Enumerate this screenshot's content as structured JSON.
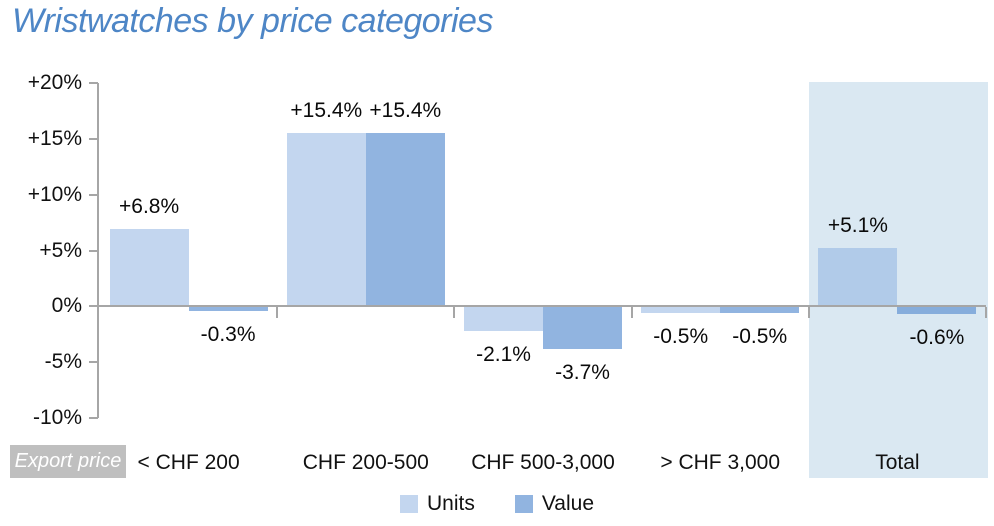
{
  "title": "Wristwatches by price categories",
  "export_price_label": "Export price",
  "colors": {
    "title": "#4E86C6",
    "units_apparent": "#C5D9F1",
    "value_apparent": "#91B4E0",
    "units_fill": "rgba(140,176,224,0.52)",
    "value_fill": "rgba(98,148,211,0.70)",
    "total_highlight_bg": "#DAE8F2",
    "axis_line": "#A6A6A6",
    "export_chip_bg": "#BFBFBF",
    "export_chip_text": "#FFFFFF"
  },
  "chart_data": {
    "type": "bar",
    "title": "Wristwatches by price categories",
    "categories": [
      "< CHF 200",
      "CHF 200-500",
      "CHF 500-3,000",
      "> CHF 3,000",
      "Total"
    ],
    "series": [
      {
        "name": "Units",
        "values": [
          6.8,
          15.4,
          -2.1,
          -0.5,
          5.1
        ],
        "labels": [
          "+6.8%",
          "+15.4%",
          "-2.1%",
          "-0.5%",
          "+5.1%"
        ]
      },
      {
        "name": "Value",
        "values": [
          -0.3,
          15.4,
          -3.7,
          -0.5,
          -0.6
        ],
        "labels": [
          "-0.3%",
          "+15.4%",
          "-3.7%",
          "-0.5%",
          "-0.6%"
        ]
      }
    ],
    "ylim": [
      -10,
      20
    ],
    "ytick_step": 5,
    "yticks": [
      "+20%",
      "+15%",
      "+10%",
      "+5%",
      "0%",
      "-5%",
      "-10%"
    ],
    "xlabel": "Export price",
    "ylabel": "",
    "grid": false,
    "legend_position": "bottom",
    "highlight_category": "Total"
  }
}
